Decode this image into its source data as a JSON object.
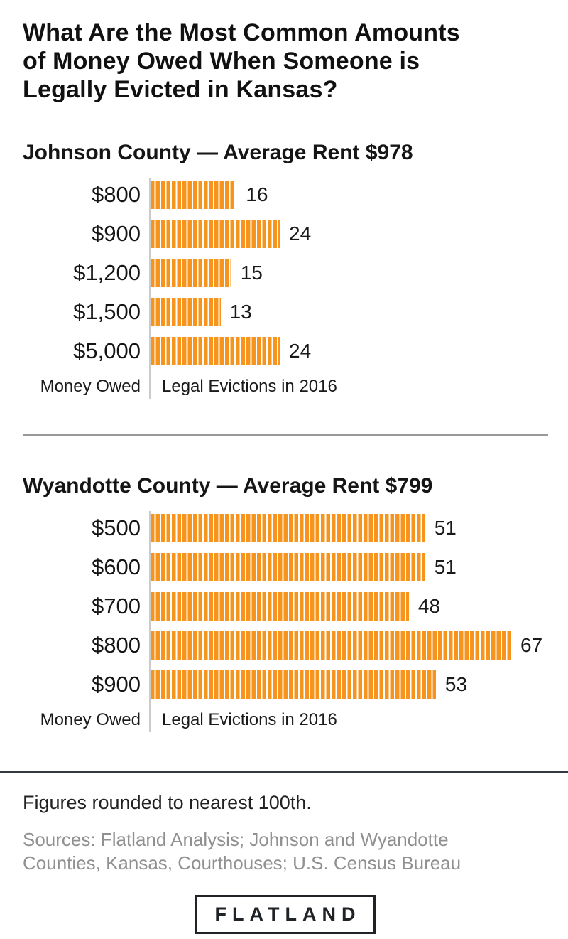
{
  "page": {
    "title": "What Are the Most Common Amounts of Money Owed When Someone is Legally Evicted in Kansas?",
    "title_lines": [
      "What Are the Most Common Amounts",
      "of Money Owed When Someone is",
      "Legally Evicted in Kansas?"
    ]
  },
  "chart_data": [
    {
      "type": "bar",
      "orientation": "horizontal",
      "title": "Johnson County — Average Rent $978",
      "categories": [
        "$800",
        "$900",
        "$1,200",
        "$1,500",
        "$5,000"
      ],
      "values": [
        16,
        24,
        15,
        13,
        24
      ],
      "xlabel": "Money Owed",
      "value_axis_label": "Legal Evictions in 2016",
      "xlim": [
        0,
        67
      ],
      "grid": false,
      "legend": false,
      "bar_color": "#F7941E",
      "bar_pattern": "vertical-white-stripes"
    },
    {
      "type": "bar",
      "orientation": "horizontal",
      "title": "Wyandotte County — Average Rent $799",
      "categories": [
        "$500",
        "$600",
        "$700",
        "$800",
        "$900"
      ],
      "values": [
        51,
        51,
        48,
        67,
        53
      ],
      "xlabel": "Money Owed",
      "value_axis_label": "Legal Evictions in 2016",
      "xlim": [
        0,
        67
      ],
      "grid": false,
      "legend": false,
      "bar_color": "#F7941E",
      "bar_pattern": "vertical-white-stripes"
    }
  ],
  "footer": {
    "note": "Figures rounded to nearest 100th.",
    "sources": "Sources: Flatland Analysis; Johnson and Wyandotte Counties, Kansas, Courthouses; U.S. Census Bureau",
    "sources_lines": [
      "Sources: Flatland Analysis; Johnson and Wyandotte",
      "Counties, Kansas, Courthouses; U.S. Census Bureau"
    ],
    "logo_text": "FLATLAND"
  },
  "colors": {
    "bar": "#F7941E",
    "axis_line": "#cbcbcb",
    "divider": "#999999",
    "footer_rule": "#343a42",
    "sources_text": "#909090",
    "text": "#111111"
  }
}
